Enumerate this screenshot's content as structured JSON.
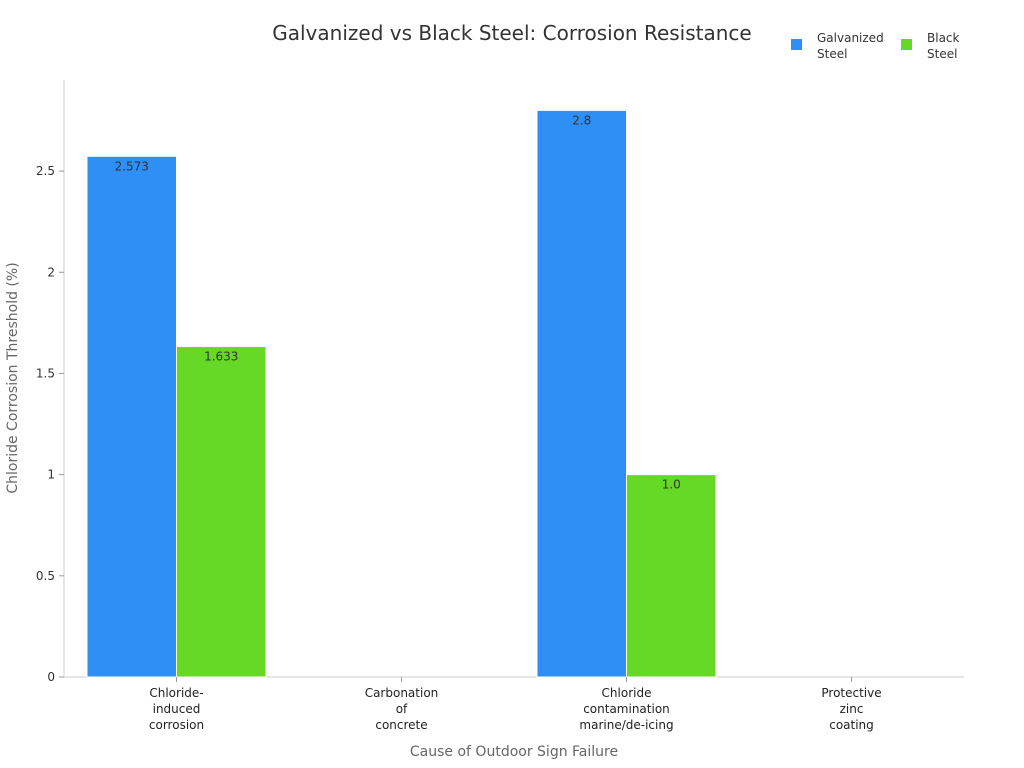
{
  "chart_data": {
    "type": "bar",
    "title": "Galvanized vs Black Steel: Corrosion Resistance",
    "xlabel": "Cause of Outdoor Sign Failure",
    "ylabel": "Chloride Corrosion Threshold (%)",
    "categories": [
      [
        "Chloride-",
        "induced",
        "corrosion"
      ],
      [
        "Carbonation",
        "of",
        "concrete"
      ],
      [
        "Chloride",
        "contamination",
        "marine/de-icing"
      ],
      [
        "Protective",
        "zinc",
        "coating"
      ]
    ],
    "series": [
      {
        "name": [
          "Galvanized",
          "Steel"
        ],
        "color": "#2f8ff5",
        "values": [
          2.573,
          null,
          2.8,
          null
        ],
        "labels": [
          "2.573",
          "",
          "2.8",
          ""
        ]
      },
      {
        "name": [
          "Black",
          "Steel"
        ],
        "color": "#66d926",
        "values": [
          1.633,
          null,
          1.0,
          null
        ],
        "labels": [
          "1.633",
          "",
          "1.0",
          ""
        ]
      }
    ],
    "ylim": [
      0,
      2.95
    ],
    "yticks": [
      0,
      0.5,
      1,
      1.5,
      2,
      2.5
    ],
    "ytick_labels": [
      "0",
      "0.5",
      "1",
      "1.5",
      "2",
      "2.5"
    ],
    "grid": false,
    "legend": "top-right"
  }
}
